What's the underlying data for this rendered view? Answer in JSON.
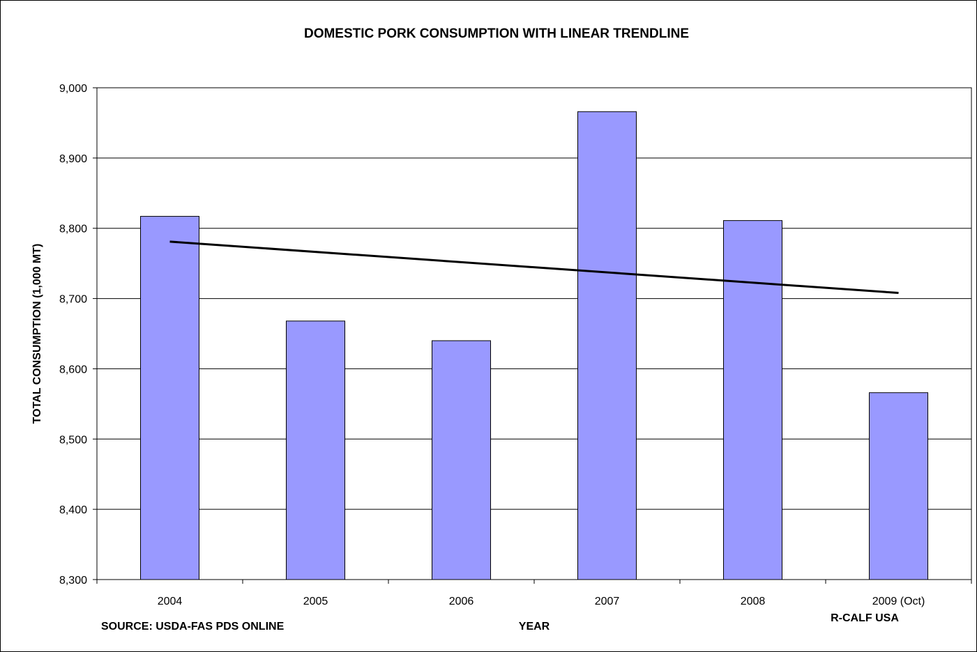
{
  "chart_data": {
    "type": "bar",
    "title": "DOMESTIC PORK CONSUMPTION WITH LINEAR TRENDLINE",
    "xlabel": "YEAR",
    "ylabel": "TOTAL CONSUMPTION (1,000 MT)",
    "categories": [
      "2004",
      "2005",
      "2006",
      "2007",
      "2008",
      "2009 (Oct)"
    ],
    "values": [
      8817,
      8668,
      8640,
      8966,
      8811,
      8566
    ],
    "ylim": [
      8300,
      9000
    ],
    "yticks": [
      8300,
      8400,
      8500,
      8600,
      8700,
      8800,
      8900,
      9000
    ],
    "ytick_labels": [
      "8,300",
      "8,400",
      "8,500",
      "8,600",
      "8,700",
      "8,800",
      "8,900",
      "9,000"
    ],
    "trendline": {
      "type": "linear",
      "start": 8781,
      "end": 8708
    },
    "grid": true,
    "legend": "none",
    "bar_color": "#9999ff",
    "trendline_color": "#000000",
    "annotations": {
      "source": "SOURCE:  USDA-FAS PDS ONLINE",
      "credit": "R-CALF USA"
    }
  }
}
